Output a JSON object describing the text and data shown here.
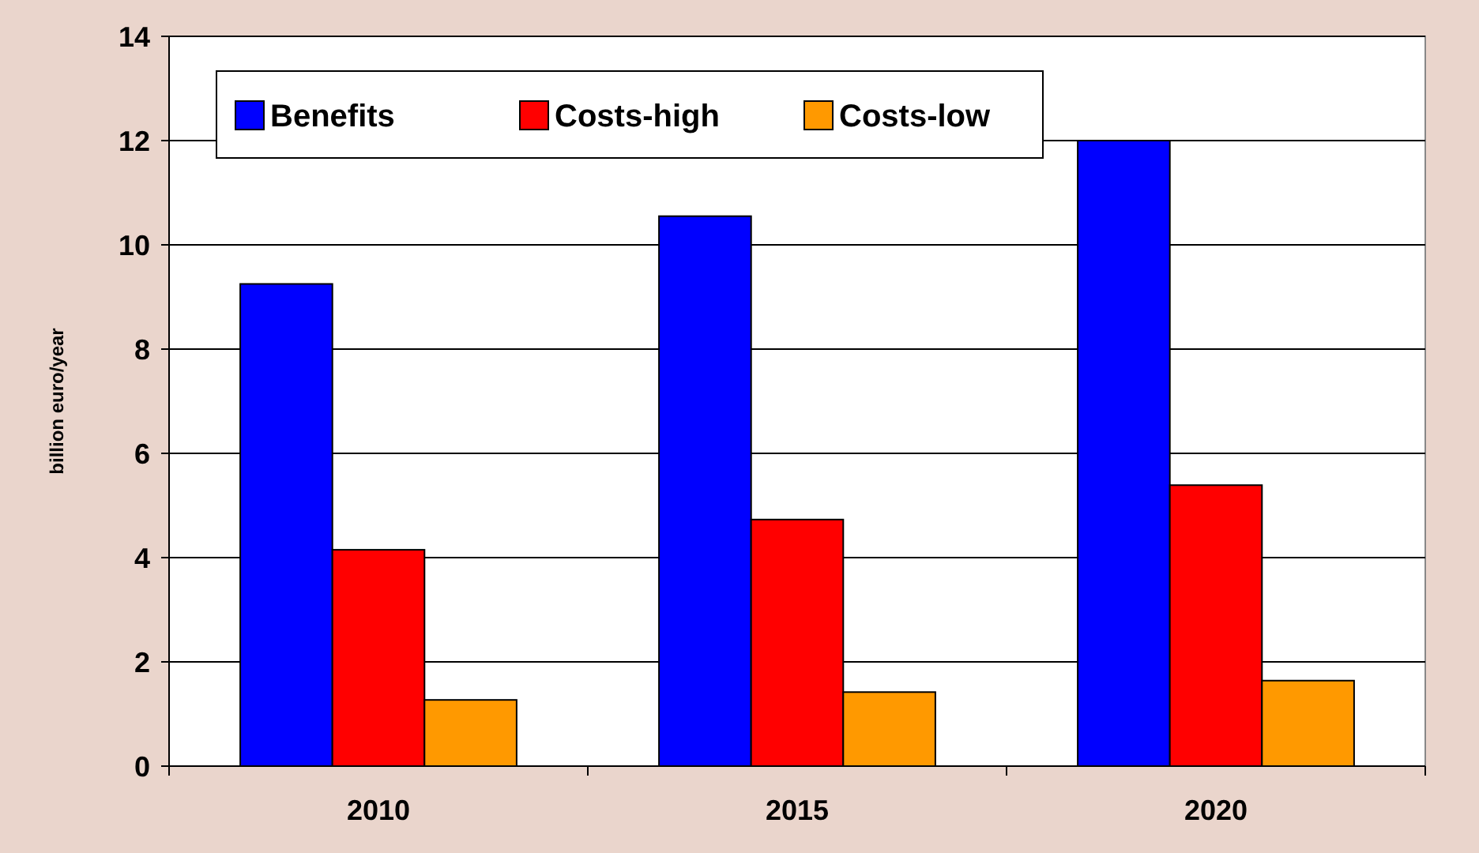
{
  "chart_data": {
    "type": "bar",
    "ylabel": "billion euro/year",
    "categories": [
      "2010",
      "2015",
      "2020"
    ],
    "series": [
      {
        "name": "Benefits",
        "color": "#0000ff",
        "values": [
          9.25,
          10.55,
          12.0
        ]
      },
      {
        "name": "Costs-high",
        "color": "#ff0000",
        "values": [
          4.15,
          4.73,
          5.39
        ]
      },
      {
        "name": "Costs-low",
        "color": "#ff9900",
        "values": [
          1.27,
          1.42,
          1.64
        ]
      }
    ],
    "ylim": [
      0,
      14
    ],
    "yticks": [
      0,
      2,
      4,
      6,
      8,
      10,
      12,
      14
    ],
    "grid": "y",
    "legend": "top left"
  }
}
